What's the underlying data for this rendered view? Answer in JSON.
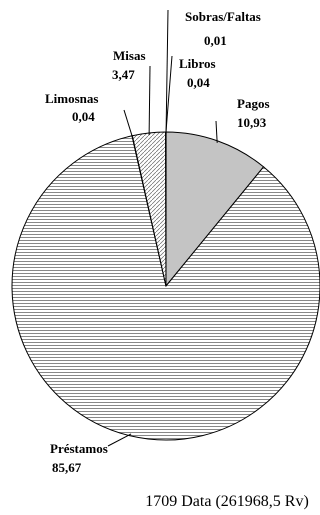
{
  "chart_data": {
    "type": "pie",
    "caption": "1709 Data (261968,5 Rv)",
    "slices": [
      {
        "name": "Sobras/Faltas",
        "value": 0.01,
        "label": "0,01",
        "pattern": "dense-hatch"
      },
      {
        "name": "Pagos",
        "value": 10.93,
        "label": "10,93",
        "pattern": "solid-gray"
      },
      {
        "name": "Préstamos",
        "value": 85.67,
        "label": "85,67",
        "pattern": "horizontal-lines"
      },
      {
        "name": "Limosnas",
        "value": 0.04,
        "label": "0,04",
        "pattern": "dots"
      },
      {
        "name": "Misas",
        "value": 3.47,
        "label": "3,47",
        "pattern": "diagonal-lines"
      },
      {
        "name": "Libros",
        "value": 0.04,
        "label": "0,04",
        "pattern": "dots"
      }
    ],
    "start": "12 o'clock",
    "direction": "clockwise",
    "legend": "none"
  }
}
